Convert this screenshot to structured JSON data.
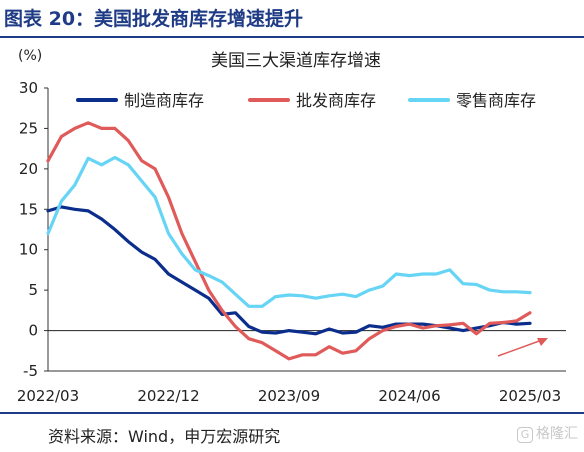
{
  "figure": {
    "title": "图表 20：美国批发商库存增速提升",
    "source": "资料来源：Wind，申万宏源研究",
    "watermark": "格隆汇"
  },
  "colors": {
    "brand": "#1f3b85",
    "manufacturing": "#0b2d8c",
    "wholesale": "#e05a5a",
    "retail": "#66d4f4",
    "arrow": "#e05a5a",
    "zero_line": "#222222"
  },
  "chart_data": {
    "type": "line",
    "title": "美国三大渠道库存增速",
    "unit_label": "(%)",
    "xlabel": "",
    "ylabel": "",
    "ylim": [
      -5,
      30
    ],
    "yticks": [
      -5,
      0,
      5,
      10,
      15,
      20,
      25,
      30
    ],
    "xlim": [
      0,
      40
    ],
    "xticks": [
      {
        "x": 0,
        "label": "2022/03"
      },
      {
        "x": 9,
        "label": "2022/12"
      },
      {
        "x": 18,
        "label": "2023/09"
      },
      {
        "x": 27,
        "label": "2024/06"
      },
      {
        "x": 36,
        "label": "2025/03"
      }
    ],
    "legend_position": "top",
    "grid": false,
    "x": [
      0,
      1,
      2,
      3,
      4,
      5,
      6,
      7,
      8,
      9,
      10,
      11,
      12,
      13,
      14,
      15,
      16,
      17,
      18,
      19,
      20,
      21,
      22,
      23,
      24,
      25,
      26,
      27,
      28,
      29,
      30,
      31,
      32,
      33,
      34,
      35,
      36
    ],
    "series": [
      {
        "name": "制造商库存",
        "color_key": "manufacturing",
        "values": [
          14.8,
          15.3,
          15.0,
          14.8,
          13.8,
          12.5,
          11.0,
          9.7,
          8.8,
          7.0,
          6.0,
          5.0,
          4.0,
          2.0,
          2.2,
          0.5,
          -0.2,
          -0.3,
          0.0,
          -0.2,
          -0.4,
          0.2,
          -0.3,
          -0.2,
          0.6,
          0.4,
          0.8,
          0.8,
          0.8,
          0.6,
          0.3,
          0.0,
          0.3,
          0.6,
          1.0,
          0.8,
          0.9
        ]
      },
      {
        "name": "批发商库存",
        "color_key": "wholesale",
        "values": [
          21.0,
          24.0,
          25.0,
          25.7,
          25.0,
          25.0,
          23.5,
          21.0,
          20.0,
          16.5,
          12.0,
          8.5,
          5.0,
          2.5,
          0.5,
          -1.0,
          -1.5,
          -2.5,
          -3.5,
          -3.0,
          -3.0,
          -2.0,
          -2.8,
          -2.5,
          -1.0,
          0.0,
          0.5,
          0.8,
          0.3,
          0.6,
          0.7,
          0.9,
          -0.4,
          0.9,
          1.0,
          1.2,
          2.2
        ]
      },
      {
        "name": "零售商库存",
        "color_key": "retail",
        "values": [
          12.0,
          16.0,
          18.0,
          21.3,
          20.5,
          21.4,
          20.5,
          18.5,
          16.5,
          12.0,
          9.5,
          7.5,
          6.8,
          6.0,
          4.5,
          3.0,
          3.0,
          4.2,
          4.4,
          4.3,
          4.0,
          4.3,
          4.5,
          4.2,
          5.0,
          5.5,
          7.0,
          6.8,
          7.0,
          7.0,
          7.5,
          5.8,
          5.7,
          5.0,
          4.8,
          4.8,
          4.7
        ]
      }
    ]
  }
}
